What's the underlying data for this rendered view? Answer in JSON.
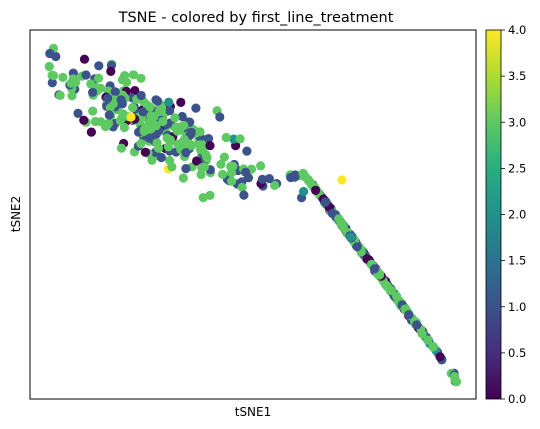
{
  "chart_data": {
    "type": "scatter",
    "title": "TSNE - colored by first_line_treatment",
    "xlabel": "tSNE1",
    "ylabel": "tSNE2",
    "x_ticks_shown": false,
    "y_ticks_shown": false,
    "grid": false,
    "legend": "none",
    "colorbar": {
      "colormap": "viridis",
      "range": [
        0.0,
        4.0
      ],
      "position": "right",
      "ticks": [
        "0.0",
        "0.5",
        "1.0",
        "1.5",
        "2.0",
        "2.5",
        "3.0",
        "3.5",
        "4.0"
      ]
    },
    "point_value_distribution": [
      {
        "value": 3.0,
        "color": "#5ec962",
        "approx_share": 0.55
      },
      {
        "value": 1.0,
        "color": "#3b528b",
        "approx_share": 0.32
      },
      {
        "value": 0.0,
        "color": "#440154",
        "approx_share": 0.11
      },
      {
        "value": 2.0,
        "color": "#21918c",
        "approx_share": 0.015
      },
      {
        "value": 4.0,
        "color": "#fde725",
        "approx_share": 0.005
      }
    ],
    "clusters": [
      {
        "name": "upper-left cluster",
        "point_count_approx": 260
      },
      {
        "name": "lower-right cluster",
        "point_count_approx": 300
      }
    ]
  }
}
